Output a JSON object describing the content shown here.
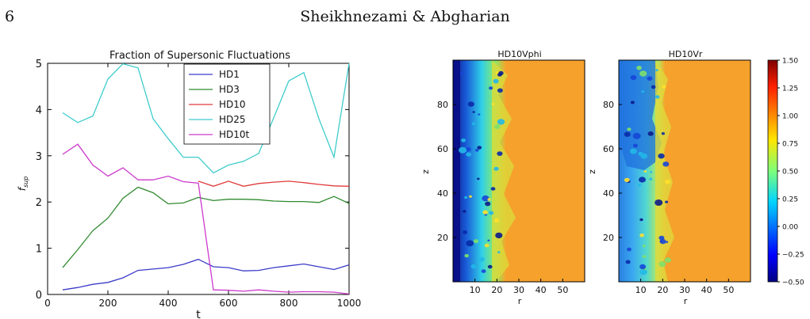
{
  "page": {
    "number": "6",
    "running_head": "Sheikhnezami & Abgharian"
  },
  "chart_data": [
    {
      "type": "line",
      "title": "Fraction of Supersonic Fluctuations",
      "xlabel": "t",
      "ylabel": "f_sup",
      "xlim": [
        0,
        1000
      ],
      "ylim": [
        0,
        5
      ],
      "xticks": [
        0,
        200,
        400,
        600,
        800,
        1000
      ],
      "yticks": [
        0,
        1,
        2,
        3,
        4,
        5
      ],
      "legend_position": "top-center",
      "grid": false,
      "x": [
        50,
        100,
        150,
        200,
        250,
        300,
        350,
        400,
        450,
        500,
        550,
        600,
        650,
        700,
        750,
        800,
        850,
        900,
        950,
        1000
      ],
      "series": [
        {
          "name": "HD1",
          "color": "#3a3aca",
          "values": [
            0.1,
            0.15,
            0.22,
            0.26,
            0.36,
            0.52,
            0.55,
            0.58,
            0.65,
            0.76,
            0.6,
            0.58,
            0.51,
            0.52,
            0.58,
            0.62,
            0.66,
            0.6,
            0.54,
            0.64
          ]
        },
        {
          "name": "HD3",
          "color": "#2f8a2f",
          "values": [
            0.58,
            0.97,
            1.38,
            1.65,
            2.08,
            2.32,
            2.2,
            1.96,
            1.98,
            2.1,
            2.03,
            2.06,
            2.06,
            2.05,
            2.02,
            2.01,
            2.01,
            1.99,
            2.12,
            1.97
          ]
        },
        {
          "name": "HD10",
          "color": "#e03a3a",
          "values": [
            null,
            null,
            null,
            null,
            null,
            null,
            null,
            null,
            null,
            2.45,
            2.34,
            2.45,
            2.34,
            2.4,
            2.43,
            2.45,
            2.42,
            2.38,
            2.35,
            2.34
          ]
        },
        {
          "name": "HD25",
          "color": "#3fcccc",
          "values": [
            3.93,
            3.72,
            3.86,
            4.66,
            4.99,
            4.9,
            3.8,
            3.37,
            2.97,
            2.97,
            2.63,
            2.8,
            2.88,
            3.05,
            3.82,
            4.62,
            4.8,
            3.8,
            2.97,
            5.0
          ]
        },
        {
          "name": "HD10t",
          "color": "#cc3acc",
          "values": [
            3.03,
            3.25,
            2.8,
            2.56,
            2.74,
            2.48,
            2.48,
            2.56,
            2.44,
            2.41,
            0.1,
            0.09,
            0.07,
            0.1,
            0.07,
            0.05,
            0.06,
            0.06,
            0.05,
            0.01
          ]
        }
      ]
    },
    {
      "type": "heatmap",
      "title": "HD10Vphi",
      "xlabel": "r",
      "ylabel": "z",
      "xticks": [
        10,
        20,
        30,
        40,
        50
      ],
      "yticks": [
        20,
        40,
        60,
        80
      ],
      "xlim": [
        0,
        60
      ],
      "ylim": [
        0,
        100
      ]
    },
    {
      "type": "heatmap",
      "title": "HD10Vr",
      "xlabel": "r",
      "ylabel": "z",
      "xticks": [
        10,
        20,
        30,
        40,
        50
      ],
      "yticks": [
        20,
        40,
        60,
        80
      ],
      "xlim": [
        0,
        60
      ],
      "ylim": [
        0,
        100
      ]
    }
  ],
  "colorbar": {
    "ticks": [
      "1.50",
      "1.25",
      "1.00",
      "0.75",
      "0.50",
      "0.25",
      "0.00",
      "−0.25",
      "−0.50"
    ],
    "range": [
      -0.5,
      1.5
    ]
  }
}
